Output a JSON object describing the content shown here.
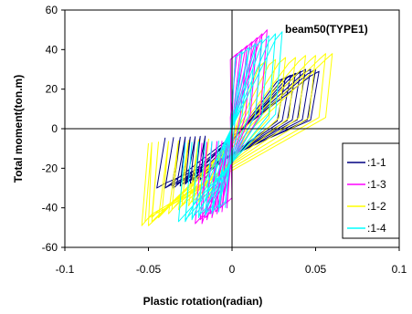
{
  "chart_data": {
    "type": "line",
    "title": "beam50(TYPE1)",
    "xlabel": "Plastic rotation(radian)",
    "ylabel": "Total moment(ton.m)",
    "xlim": [
      -0.1,
      0.1
    ],
    "ylim": [
      -60,
      60
    ],
    "x_ticks": [
      "-0.1",
      "-0.05",
      "0",
      "0.05",
      "0.1"
    ],
    "y_ticks": [
      "60",
      "40",
      "20",
      "0",
      "-20",
      "-40",
      "-60"
    ],
    "grid": false,
    "legend_position": "right",
    "series": [
      {
        "name": ":1-1",
        "color": "#000080",
        "loop_right_x": [
          0.032,
          0.035,
          0.038,
          0.041,
          0.044,
          0.047,
          0.05,
          0.052
        ],
        "loop_left_x": [
          -0.021,
          -0.024,
          -0.027,
          -0.03,
          -0.033,
          -0.036,
          -0.04,
          -0.045
        ],
        "upper_moment": [
          26,
          27,
          28,
          29,
          30,
          30,
          30,
          29
        ],
        "lower_moment": [
          -25,
          -26,
          -27,
          -28,
          -28,
          -29,
          -30,
          -30
        ],
        "elastic_half_width": 0.005
      },
      {
        "name": ":1-3",
        "color": "#ff00ff",
        "loop_right_x": [
          0.003,
          0.006,
          0.009,
          0.012,
          0.015,
          0.018,
          0.021
        ],
        "loop_left_x": [
          -0.004,
          -0.007,
          -0.01,
          -0.013,
          -0.016,
          -0.019,
          -0.022
        ],
        "upper_moment": [
          38,
          40,
          42,
          44,
          46,
          48,
          50
        ],
        "lower_moment": [
          -38,
          -40,
          -42,
          -43,
          -45,
          -46,
          -48
        ],
        "elastic_half_width": 0.004
      },
      {
        "name": ":1-2",
        "color": "#ffff00",
        "loop_right_x": [
          0.02,
          0.026,
          0.032,
          0.038,
          0.044,
          0.05,
          0.056,
          0.06
        ],
        "loop_left_x": [
          -0.018,
          -0.024,
          -0.03,
          -0.036,
          -0.042,
          -0.048,
          -0.052,
          -0.054
        ],
        "upper_moment": [
          34,
          35,
          36,
          36,
          37,
          37,
          38,
          38
        ],
        "lower_moment": [
          -35,
          -37,
          -39,
          -41,
          -43,
          -45,
          -47,
          -49
        ],
        "elastic_half_width": 0.004
      },
      {
        "name": ":1-4",
        "color": "#00ffff",
        "loop_right_x": [
          0.006,
          0.01,
          0.014,
          0.018,
          0.022,
          0.026,
          0.03
        ],
        "loop_left_x": [
          -0.008,
          -0.012,
          -0.016,
          -0.02,
          -0.024,
          -0.028,
          -0.032
        ],
        "upper_moment": [
          39,
          41,
          43,
          45,
          47,
          48,
          49
        ],
        "lower_moment": [
          -40,
          -42,
          -43,
          -44,
          -45,
          -46,
          -47
        ],
        "elastic_half_width": 0.004
      }
    ]
  }
}
